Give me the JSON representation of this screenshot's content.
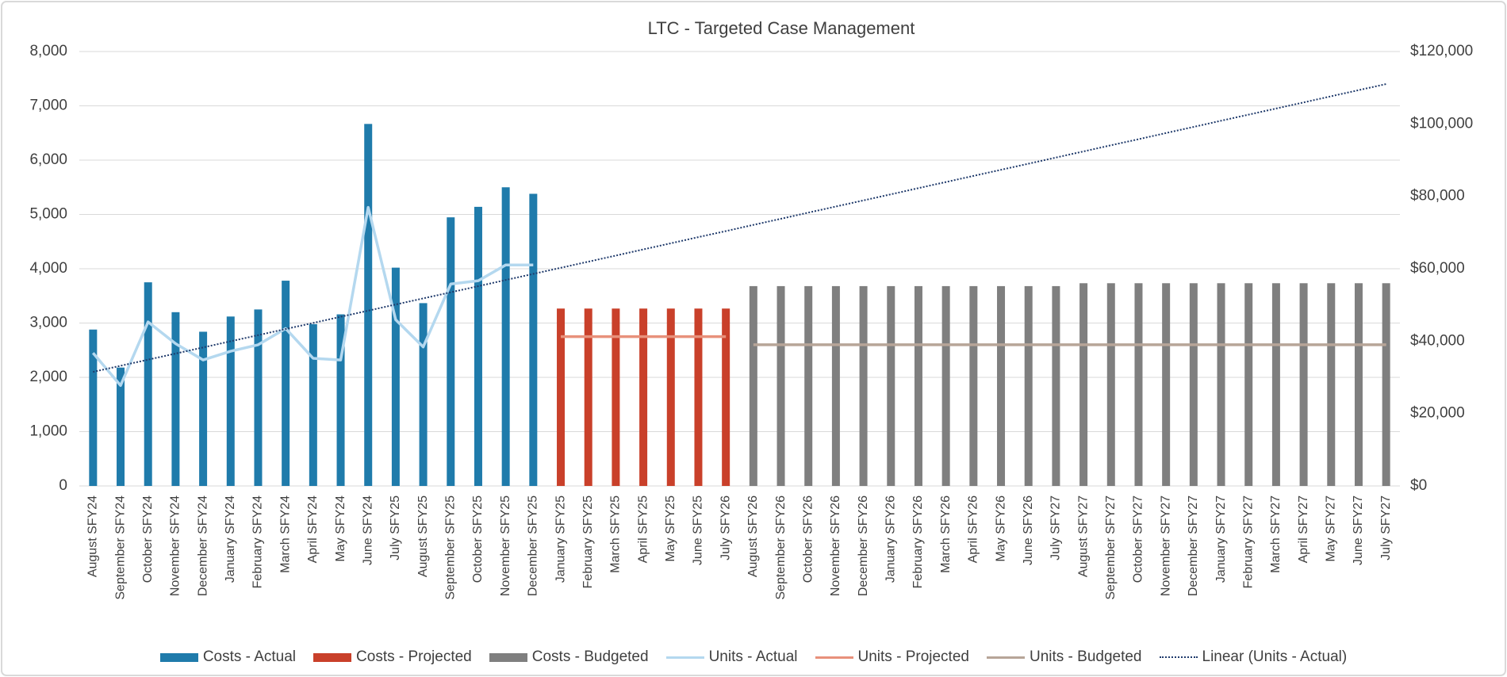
{
  "chart_data": {
    "type": "combo",
    "title": "LTC - Targeted Case Management",
    "categories": [
      "August SFY24",
      "September SFY24",
      "October SFY24",
      "November SFY24",
      "December SFY24",
      "January SFY24",
      "February SFY24",
      "March SFY24",
      "April SFY24",
      "May SFY24",
      "June SFY24",
      "July SFY25",
      "August SFY25",
      "September SFY25",
      "October SFY25",
      "November SFY25",
      "December SFY25",
      "January SFY25",
      "February SFY25",
      "March SFY25",
      "April SFY25",
      "May SFY25",
      "June SFY25",
      "July SFY26",
      "August SFY26",
      "September SFY26",
      "October SFY26",
      "November SFY26",
      "December SFY26",
      "January SFY26",
      "February SFY26",
      "March SFY26",
      "April SFY26",
      "May SFY26",
      "June SFY26",
      "July SFY27",
      "August SFY27",
      "September SFY27",
      "October SFY27",
      "November SFY27",
      "December SFY27",
      "January SFY27",
      "February SFY27",
      "March SFY27",
      "April SFY27",
      "May SFY27",
      "June SFY27",
      "July SFY27"
    ],
    "series": [
      {
        "name": "Costs - Actual",
        "type": "bar",
        "axis": "y2",
        "color": "#1f7bab",
        "values": [
          43200,
          32700,
          56250,
          48000,
          42600,
          46800,
          48750,
          56700,
          44700,
          47400,
          100000,
          60300,
          50500,
          74200,
          77100,
          82500,
          80700,
          null,
          null,
          null,
          null,
          null,
          null,
          null,
          null,
          null,
          null,
          null,
          null,
          null,
          null,
          null,
          null,
          null,
          null,
          null,
          null,
          null,
          null,
          null,
          null,
          null,
          null,
          null,
          null,
          null,
          null,
          null
        ]
      },
      {
        "name": "Costs - Projected",
        "type": "bar",
        "axis": "y2",
        "color": "#c9402a",
        "values": [
          null,
          null,
          null,
          null,
          null,
          null,
          null,
          null,
          null,
          null,
          null,
          null,
          null,
          null,
          null,
          null,
          null,
          49000,
          49000,
          49000,
          49000,
          49000,
          49000,
          49000,
          null,
          null,
          null,
          null,
          null,
          null,
          null,
          null,
          null,
          null,
          null,
          null,
          null,
          null,
          null,
          null,
          null,
          null,
          null,
          null,
          null,
          null,
          null,
          null
        ]
      },
      {
        "name": "Costs - Budgeted",
        "type": "bar",
        "axis": "y2",
        "color": "#7f7f7f",
        "values": [
          null,
          null,
          null,
          null,
          null,
          null,
          null,
          null,
          null,
          null,
          null,
          null,
          null,
          null,
          null,
          null,
          null,
          null,
          null,
          null,
          null,
          null,
          null,
          null,
          55200,
          55200,
          55200,
          55200,
          55200,
          55200,
          55200,
          55200,
          55200,
          55200,
          55200,
          55200,
          56000,
          56000,
          56000,
          56000,
          56000,
          56000,
          56000,
          56000,
          56000,
          56000,
          56000,
          56000
        ]
      },
      {
        "name": "Units - Actual",
        "type": "line",
        "color": "#b4d8ef",
        "values": [
          2450,
          1850,
          3020,
          2620,
          2320,
          2480,
          2600,
          2900,
          2350,
          2320,
          5130,
          3060,
          2560,
          3720,
          3780,
          4070,
          4070,
          null,
          null,
          null,
          null,
          null,
          null,
          null,
          null,
          null,
          null,
          null,
          null,
          null,
          null,
          null,
          null,
          null,
          null,
          null,
          null,
          null,
          null,
          null,
          null,
          null,
          null,
          null,
          null,
          null,
          null,
          null
        ]
      },
      {
        "name": "Units - Projected",
        "type": "line",
        "color": "#e8917b",
        "values": [
          null,
          null,
          null,
          null,
          null,
          null,
          null,
          null,
          null,
          null,
          null,
          null,
          null,
          null,
          null,
          null,
          null,
          2750,
          2750,
          2750,
          2750,
          2750,
          2750,
          2750,
          null,
          null,
          null,
          null,
          null,
          null,
          null,
          null,
          null,
          null,
          null,
          null,
          null,
          null,
          null,
          null,
          null,
          null,
          null,
          null,
          null,
          null,
          null,
          null
        ]
      },
      {
        "name": "Units - Budgeted",
        "type": "line",
        "color": "#b7a598",
        "values": [
          null,
          null,
          null,
          null,
          null,
          null,
          null,
          null,
          null,
          null,
          null,
          null,
          null,
          null,
          null,
          null,
          null,
          null,
          null,
          null,
          null,
          null,
          null,
          null,
          2600,
          2600,
          2600,
          2600,
          2600,
          2600,
          2600,
          2600,
          2600,
          2600,
          2600,
          2600,
          2600,
          2600,
          2600,
          2600,
          2600,
          2600,
          2600,
          2600,
          2600,
          2600,
          2600,
          2600
        ]
      },
      {
        "name": "Linear (Units - Actual)",
        "type": "line",
        "line_style": "dotted",
        "color": "#1f3a6b",
        "values": [
          2100,
          2213,
          2326,
          2438,
          2551,
          2664,
          2777,
          2890,
          3002,
          3115,
          3228,
          3341,
          3454,
          3566,
          3679,
          3792,
          3905,
          4018,
          4130,
          4243,
          4356,
          4469,
          4582,
          4694,
          4807,
          4920,
          5033,
          5146,
          5258,
          5371,
          5484,
          5597,
          5710,
          5822,
          5935,
          6048,
          6161,
          6274,
          6386,
          6499,
          6612,
          6725,
          6838,
          6950,
          7063,
          7176,
          7289,
          7402
        ]
      }
    ],
    "ylim": [
      0,
      8000
    ],
    "yticks": [
      0,
      {
        "value": 1000,
        "label": "1,000"
      },
      {
        "value": 2000,
        "label": "2,000"
      },
      {
        "value": 3000,
        "label": "3,000"
      },
      {
        "value": 4000,
        "label": "4,000"
      },
      {
        "value": 5000,
        "label": "5,000"
      },
      {
        "value": 6000,
        "label": "6,000"
      },
      {
        "value": 7000,
        "label": "7,000"
      },
      {
        "value": 8000,
        "label": "8,000"
      }
    ],
    "y2lim": [
      0,
      120000
    ],
    "y2ticks": [
      {
        "value": 0,
        "label": "$0"
      },
      {
        "value": 20000,
        "label": "$20,000"
      },
      {
        "value": 40000,
        "label": "$40,000"
      },
      {
        "value": 60000,
        "label": "$60,000"
      },
      {
        "value": 80000,
        "label": "$80,000"
      },
      {
        "value": 100000,
        "label": "$100,000"
      },
      {
        "value": 120000,
        "label": "$120,000"
      }
    ],
    "grid": true,
    "legend": "bottom"
  }
}
